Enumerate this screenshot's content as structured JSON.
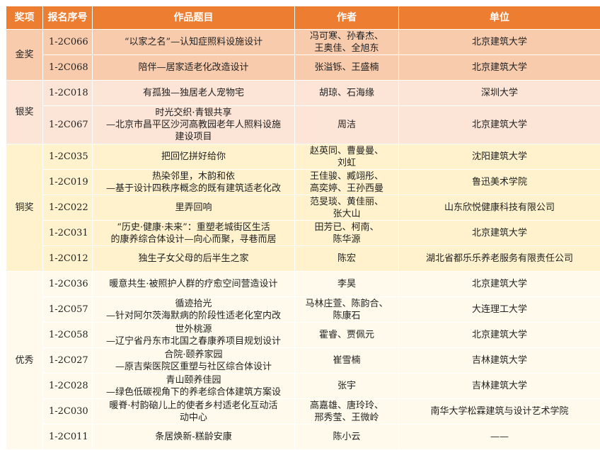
{
  "header": [
    "奖项",
    "报名序号",
    "作品题目",
    "作者",
    "单位"
  ],
  "colors": {
    "header": "#ED7D31",
    "金奖": "#F8CBAD",
    "银奖": "#FCE4D6",
    "铜奖": "#FFF2CC",
    "优秀": "#FFFAEB"
  },
  "groups": [
    {
      "award": "金奖",
      "rows": [
        {
          "no": "1-2C066",
          "title": [
            "“以家之名”—认知症照料设施设计"
          ],
          "authors": [
            "冯可寒、孙春杰、",
            "王奥佳、全旭东"
          ],
          "unit": "北京建筑大学"
        },
        {
          "no": "1-2C068",
          "title": [
            "陪伴—居家适老化改造设计"
          ],
          "authors": [
            "张溢铄、王盛楠"
          ],
          "unit": "北京建筑大学"
        }
      ]
    },
    {
      "award": "银奖",
      "rows": [
        {
          "no": "1-2C018",
          "title": [
            "有孤独—独居老人宠物宅"
          ],
          "authors": [
            "胡琼、石海缘"
          ],
          "unit": "深圳大学"
        },
        {
          "no": "1-2C067",
          "title": [
            "时光交织·青银共享",
            "—北京市昌平区沙河高教园老年人照料设施",
            "建设项目"
          ],
          "authors": [
            "周洁"
          ],
          "unit": "北京建筑大学",
          "tall": true
        }
      ]
    },
    {
      "award": "铜奖",
      "rows": [
        {
          "no": "1-2C035",
          "title": [
            "把回忆拼好给你"
          ],
          "authors": [
            "赵英同、曹曼曼、",
            "刘虹"
          ],
          "unit": "沈阳建筑大学"
        },
        {
          "no": "1-2C019",
          "title": [
            "热染邻里，木韵和依",
            "—基于设计四秩序概念的既有建筑适老化改"
          ],
          "authors": [
            "王佳骏、臧翊彤、",
            "高奕婷、王孙西曼"
          ],
          "unit": "鲁迅美术学院"
        },
        {
          "no": "1-2C022",
          "title": [
            "里弄回响"
          ],
          "authors": [
            "范旻琰、黄佳丽、",
            "张大山"
          ],
          "unit": "山东欣悦健康科技有限公司"
        },
        {
          "no": "1-2C031",
          "title": [
            "“历史·健康·未来”：重塑老城街区生活",
            "的康养综合体设计—向心而聚，寻巷而居"
          ],
          "authors": [
            "田芳已、柯南、",
            "陈华源"
          ],
          "unit": "北京建筑大学"
        },
        {
          "no": "1-2C012",
          "title": [
            "独生子女父母的后半生之家"
          ],
          "authors": [
            "陈宏"
          ],
          "unit": "湖北省都乐乐养老服务有限责任公司"
        }
      ]
    },
    {
      "award": "优秀",
      "rows": [
        {
          "no": "1-2C036",
          "title": [
            "暖意共生·被照护人群的疗愈空间营造设计"
          ],
          "authors": [
            "李昊"
          ],
          "unit": "北京建筑大学"
        },
        {
          "no": "1-2C057",
          "title": [
            "循迹拾光",
            "—针对阿尔茨海默病的阶段性适老化室内改"
          ],
          "authors": [
            "马林庄萱、陈韵合、",
            "陈康石"
          ],
          "unit": "大连理工大学"
        },
        {
          "no": "1-2C058",
          "title": [
            "世外桃源",
            "—辽宁省丹东市北国之春康养项目规划设计"
          ],
          "authors": [
            "霍睿、贾佩元"
          ],
          "unit": "北京建筑大学"
        },
        {
          "no": "1-2C027",
          "title": [
            "合院·颐养家园",
            "—原吉柴医院区重塑与社区综合体设计"
          ],
          "authors": [
            "崔雪楠"
          ],
          "unit": "吉林建筑大学"
        },
        {
          "no": "1-2C028",
          "title": [
            "青山颐养佳园",
            "—绿色低碳视角下的养老综合体建筑方案设"
          ],
          "authors": [
            "张宇"
          ],
          "unit": "吉林建筑大学"
        },
        {
          "no": "1-2C030",
          "title": [
            "暖脊·村韵硇儿上的使者乡村适老化互动活",
            "动中心"
          ],
          "authors": [
            "高嘉雄、唐玲玲、",
            "邢秀莹、王微岭"
          ],
          "unit": "南华大学松霖建筑与设计艺术学院"
        },
        {
          "no": "1-2C011",
          "title": [
            "条居焕新-糕龄安康"
          ],
          "authors": [
            "陈小云"
          ],
          "unit": "——"
        }
      ]
    }
  ]
}
